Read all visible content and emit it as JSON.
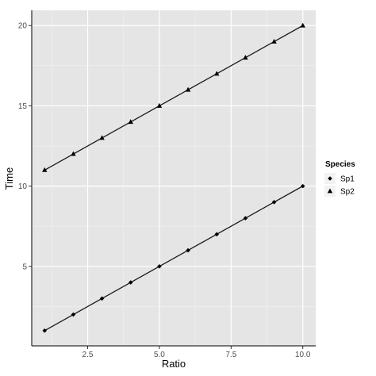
{
  "chart_data": {
    "type": "line",
    "title": "",
    "xlabel": "Ratio",
    "ylabel": "Time",
    "xlim": [
      0.55,
      10.45
    ],
    "ylim": [
      0.05,
      20.95
    ],
    "xticks": [
      2.5,
      5.0,
      7.5,
      10.0
    ],
    "xtick_labels": [
      "2.5",
      "5.0",
      "7.5",
      "10.0"
    ],
    "yticks": [
      5,
      10,
      15,
      20
    ],
    "ytick_labels": [
      "5",
      "10",
      "15",
      "20"
    ],
    "grid": true,
    "legend": {
      "title": "Species",
      "position": "right"
    },
    "colors": {
      "panel_background": "#e5e5e5",
      "grid_major": "#ffffff",
      "grid_minor": "#f2f2f2",
      "line": "#1a1a1a",
      "marker": "#000000"
    },
    "series": [
      {
        "name": "Sp1",
        "marker": "diamond",
        "x": [
          1,
          2,
          3,
          4,
          5,
          6,
          7,
          8,
          9,
          10
        ],
        "y": [
          1,
          2,
          3,
          4,
          5,
          6,
          7,
          8,
          9,
          10
        ]
      },
      {
        "name": "Sp2",
        "marker": "triangle",
        "x": [
          1,
          2,
          3,
          4,
          5,
          6,
          7,
          8,
          9,
          10
        ],
        "y": [
          11,
          12,
          13,
          14,
          15,
          16,
          17,
          18,
          19,
          20
        ]
      }
    ]
  }
}
